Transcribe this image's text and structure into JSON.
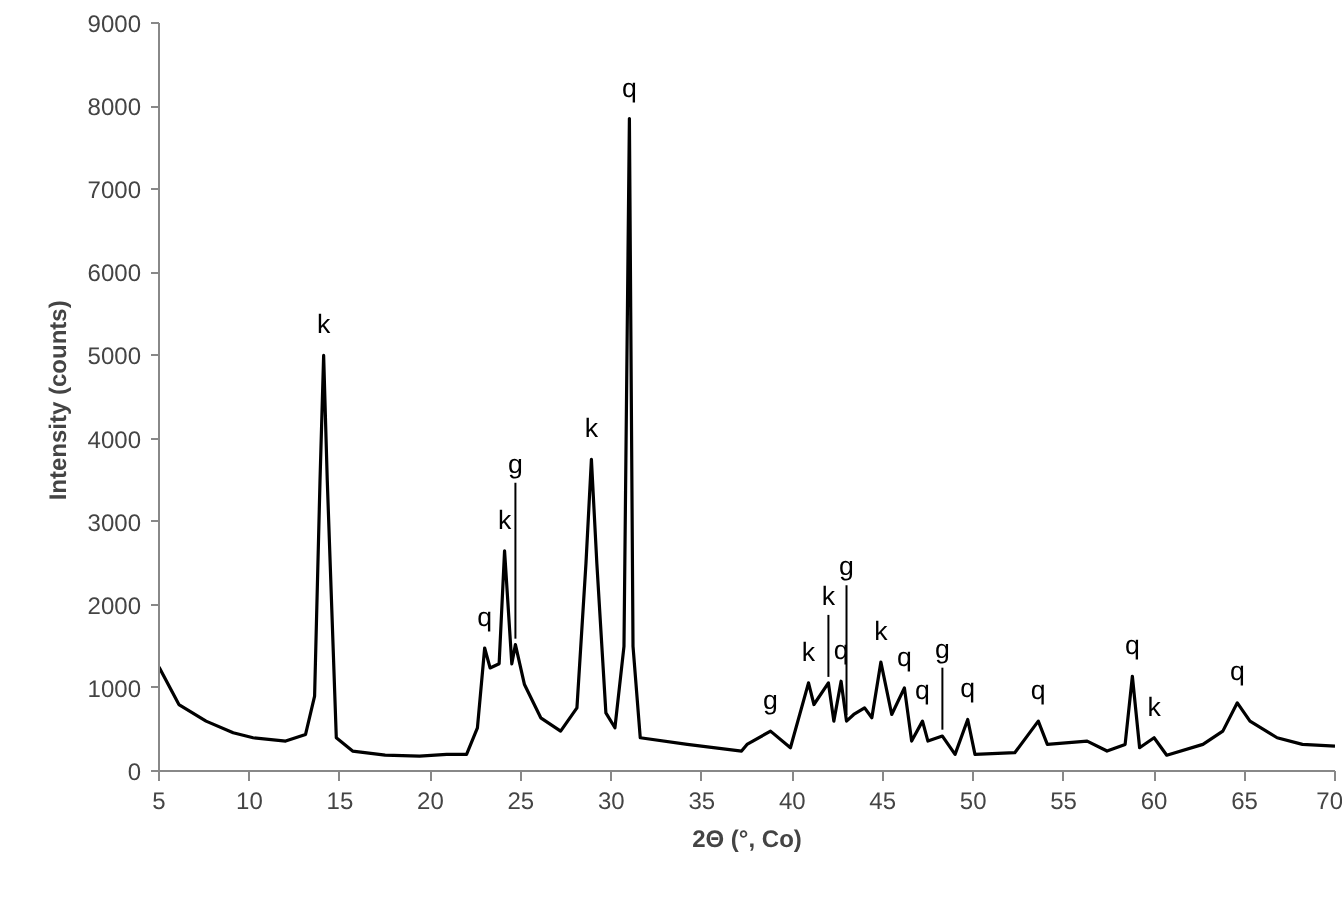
{
  "chart_data": {
    "type": "line",
    "xlabel": "2Θ (°, Co)",
    "ylabel": "Intensity  (counts)",
    "xlim": [
      5,
      70
    ],
    "ylim": [
      0,
      9000
    ],
    "xticks": [
      5,
      10,
      15,
      20,
      25,
      30,
      35,
      40,
      45,
      50,
      55,
      60,
      65,
      70
    ],
    "yticks": [
      0,
      1000,
      2000,
      3000,
      4000,
      5000,
      6000,
      7000,
      8000,
      9000
    ],
    "grid": false,
    "marker": "none",
    "line_style": "solid",
    "series": [
      {
        "color": "#000000",
        "x": [
          5,
          6.1,
          7.6,
          9.1,
          10.2,
          12.0,
          13.1,
          13.6,
          13.9,
          14.1,
          14.3,
          14.8,
          15.7,
          17.5,
          19.4,
          20.9,
          22.0,
          22.6,
          23.0,
          23.3,
          23.8,
          24.1,
          24.5,
          24.7,
          25.2,
          26.1,
          27.2,
          28.1,
          28.6,
          28.9,
          29.2,
          29.7,
          30.2,
          30.7,
          31.0,
          31.2,
          31.6,
          34.2,
          37.2,
          37.5,
          38.8,
          39.9,
          40.9,
          41.2,
          42.0,
          42.3,
          42.7,
          43.0,
          43.4,
          44.0,
          44.4,
          44.9,
          45.5,
          46.2,
          46.6,
          47.2,
          47.5,
          48.3,
          49.0,
          49.7,
          50.1,
          52.3,
          53.6,
          54.1,
          56.3,
          57.4,
          58.4,
          58.8,
          59.2,
          60.0,
          60.7,
          62.7,
          63.8,
          64.6,
          65.3,
          66.8,
          68.2,
          70
        ],
        "values": [
          1250,
          800,
          600,
          460,
          400,
          360,
          440,
          900,
          3500,
          5000,
          3500,
          400,
          240,
          190,
          180,
          200,
          200,
          520,
          1480,
          1240,
          1290,
          2650,
          1290,
          1520,
          1040,
          640,
          480,
          760,
          2500,
          3750,
          2500,
          700,
          520,
          1500,
          7850,
          1500,
          400,
          320,
          240,
          320,
          480,
          280,
          1060,
          800,
          1060,
          600,
          1080,
          600,
          680,
          760,
          640,
          1310,
          680,
          1000,
          360,
          600,
          360,
          420,
          200,
          620,
          200,
          220,
          600,
          320,
          360,
          240,
          320,
          1140,
          280,
          400,
          190,
          320,
          480,
          820,
          600,
          400,
          320,
          300
        ]
      }
    ],
    "annotations": [
      {
        "text": "k",
        "x": 14.1,
        "y": 5000
      },
      {
        "text": "q",
        "x": 23.0,
        "y": 1480
      },
      {
        "text": "k",
        "x": 24.1,
        "y": 2650
      },
      {
        "text": "g",
        "x": 24.7,
        "y": 1520
      },
      {
        "text": "k",
        "x": 28.9,
        "y": 3750
      },
      {
        "text": "q",
        "x": 31.0,
        "y": 7850
      },
      {
        "text": "g",
        "x": 38.8,
        "y": 480
      },
      {
        "text": "k",
        "x": 40.9,
        "y": 1060
      },
      {
        "text": "k",
        "x": 42.0,
        "y": 1060
      },
      {
        "text": "q",
        "x": 42.7,
        "y": 1080
      },
      {
        "text": "g",
        "x": 43.0,
        "y": 600
      },
      {
        "text": "k",
        "x": 44.9,
        "y": 1310
      },
      {
        "text": "q",
        "x": 46.2,
        "y": 1000
      },
      {
        "text": "q",
        "x": 47.2,
        "y": 600
      },
      {
        "text": "g",
        "x": 48.3,
        "y": 425
      },
      {
        "text": "q",
        "x": 49.7,
        "y": 625
      },
      {
        "text": "q",
        "x": 53.6,
        "y": 600
      },
      {
        "text": "q",
        "x": 58.8,
        "y": 1140
      },
      {
        "text": "k",
        "x": 60.0,
        "y": 400
      },
      {
        "text": "q",
        "x": 64.6,
        "y": 825
      }
    ]
  }
}
